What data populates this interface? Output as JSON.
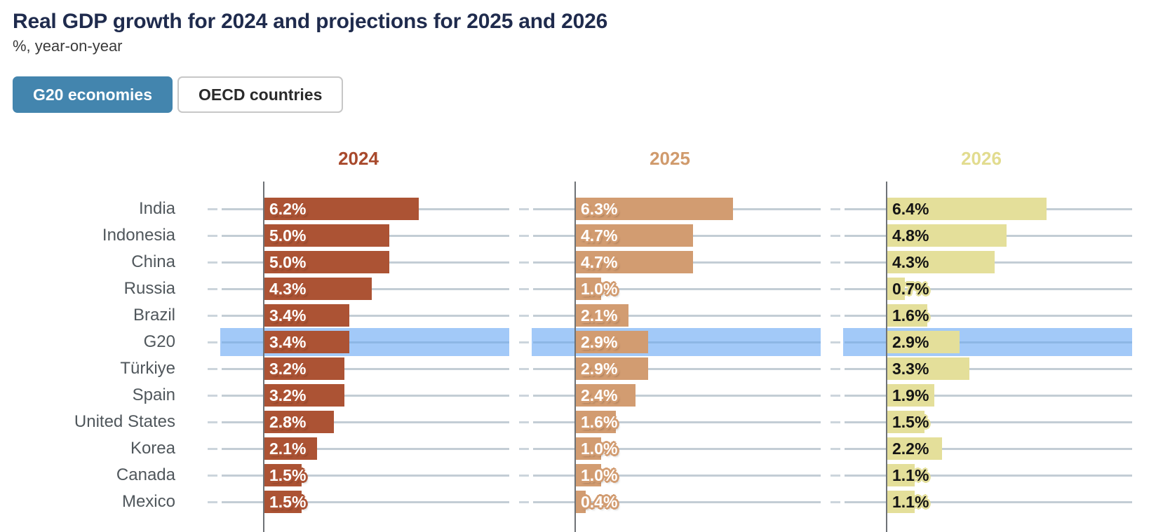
{
  "header": {
    "title": "Real GDP growth for 2024 and projections for 2025 and 2026",
    "subtitle": "%, year-on-year"
  },
  "toggle": {
    "g20_label": "G20 economies",
    "oecd_label": "OECD countries",
    "active": "G20 economies",
    "active_bg": "#4385ae"
  },
  "colors": {
    "title": "#1f2b4d",
    "row_label": "#50575c",
    "gridline": "#c3cdd5",
    "tick": "#ccd5dc",
    "axis": "#6e7276",
    "highlight_band": "#a2c9f8",
    "highlight_gridline": "#8db7e5"
  },
  "chart_data": {
    "type": "bar",
    "orientation": "horizontal",
    "title": "Real GDP growth for 2024 and projections for 2025 and 2026",
    "subtitle": "%, year-on-year",
    "categories": [
      "India",
      "Indonesia",
      "China",
      "Russia",
      "Brazil",
      "G20",
      "Türkiye",
      "Spain",
      "United States",
      "Korea",
      "Canada",
      "Mexico"
    ],
    "highlight_category": "G20",
    "series": [
      {
        "name": "2024",
        "color": "#ac5334",
        "header_color": "#a8492c",
        "label_text_color": "#ffffff",
        "values": [
          6.2,
          5.0,
          5.0,
          4.3,
          3.4,
          3.4,
          3.2,
          3.2,
          2.8,
          2.1,
          1.5,
          1.5
        ]
      },
      {
        "name": "2025",
        "color": "#d29c71",
        "header_color": "#d09a6c",
        "label_text_color": "#ffffff",
        "values": [
          6.3,
          4.7,
          4.7,
          1.0,
          2.1,
          2.9,
          2.9,
          2.4,
          1.6,
          1.0,
          1.0,
          0.4
        ]
      },
      {
        "name": "2026",
        "color": "#e4df9a",
        "header_color": "#e2dc8f",
        "label_text_color": "#151515",
        "values": [
          6.4,
          4.8,
          4.3,
          0.7,
          1.6,
          2.9,
          3.3,
          1.9,
          1.5,
          2.2,
          1.1,
          1.1
        ]
      }
    ],
    "value_format": "percent_1dp",
    "xlim": [
      0,
      10
    ],
    "grid": true,
    "legend_position": "column-headers"
  }
}
